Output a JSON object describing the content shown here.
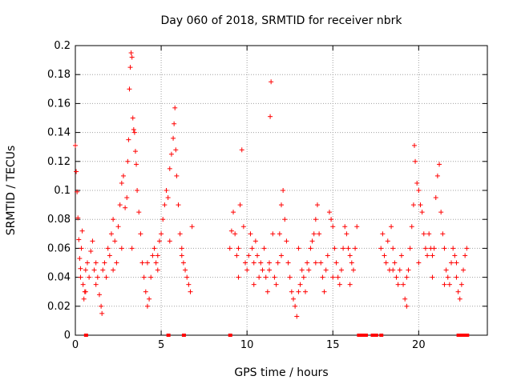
{
  "chart_data": {
    "type": "scatter",
    "title": "Day 060 of 2018, SRMTID for receiver nbrk",
    "xlabel": "GPS time / hours",
    "ylabel": "SRMTID / TECUs",
    "xlim": [
      0,
      24
    ],
    "ylim": [
      0,
      0.2
    ],
    "xticks": [
      0,
      5,
      10,
      15,
      20
    ],
    "yticks": [
      0,
      0.02,
      0.04,
      0.06,
      0.08,
      0.1,
      0.12,
      0.14,
      0.16,
      0.18,
      0.2
    ],
    "xtick_labels": [
      "0",
      "5",
      "10",
      "15",
      "20"
    ],
    "ytick_labels": [
      "0",
      "0.02",
      "0.04",
      "0.06",
      "0.08",
      "0.1",
      "0.12",
      "0.14",
      "0.16",
      "0.18",
      "0.2"
    ],
    "grid": true,
    "marker": "+",
    "color": "#ff0000",
    "series": [
      {
        "name": "SRMTID",
        "points": [
          [
            0.0,
            0.131
          ],
          [
            0.05,
            0.113
          ],
          [
            0.1,
            0.099
          ],
          [
            0.15,
            0.081
          ],
          [
            0.2,
            0.066
          ],
          [
            0.25,
            0.053
          ],
          [
            0.3,
            0.046
          ],
          [
            0.35,
            0.06
          ],
          [
            0.4,
            0.072
          ],
          [
            0.45,
            0.035
          ],
          [
            0.5,
            0.025
          ],
          [
            0.55,
            0.03
          ],
          [
            0.6,
            0.045
          ],
          [
            0.7,
            0.05
          ],
          [
            0.8,
            0.04
          ],
          [
            0.9,
            0.058
          ],
          [
            1.0,
            0.065
          ],
          [
            1.1,
            0.045
          ],
          [
            1.2,
            0.035
          ],
          [
            1.3,
            0.04
          ],
          [
            1.4,
            0.028
          ],
          [
            1.5,
            0.02
          ],
          [
            1.55,
            0.015
          ],
          [
            1.6,
            0.045
          ],
          [
            1.7,
            0.05
          ],
          [
            1.8,
            0.04
          ],
          [
            1.9,
            0.06
          ],
          [
            2.0,
            0.055
          ],
          [
            2.1,
            0.07
          ],
          [
            2.2,
            0.08
          ],
          [
            2.3,
            0.065
          ],
          [
            2.4,
            0.05
          ],
          [
            2.5,
            0.075
          ],
          [
            2.6,
            0.09
          ],
          [
            2.7,
            0.105
          ],
          [
            2.8,
            0.11
          ],
          [
            2.9,
            0.088
          ],
          [
            3.0,
            0.095
          ],
          [
            3.05,
            0.12
          ],
          [
            3.1,
            0.135
          ],
          [
            3.15,
            0.17
          ],
          [
            3.2,
            0.185
          ],
          [
            3.25,
            0.195
          ],
          [
            3.3,
            0.192
          ],
          [
            3.35,
            0.15
          ],
          [
            3.4,
            0.142
          ],
          [
            3.45,
            0.14
          ],
          [
            3.5,
            0.127
          ],
          [
            3.55,
            0.118
          ],
          [
            3.6,
            0.1
          ],
          [
            3.7,
            0.085
          ],
          [
            3.8,
            0.07
          ],
          [
            3.9,
            0.05
          ],
          [
            4.0,
            0.04
          ],
          [
            4.1,
            0.03
          ],
          [
            4.2,
            0.02
          ],
          [
            4.3,
            0.025
          ],
          [
            4.4,
            0.04
          ],
          [
            4.5,
            0.055
          ],
          [
            4.6,
            0.06
          ],
          [
            4.7,
            0.05
          ],
          [
            4.8,
            0.045
          ],
          [
            4.9,
            0.065
          ],
          [
            5.0,
            0.07
          ],
          [
            5.1,
            0.08
          ],
          [
            5.2,
            0.09
          ],
          [
            5.3,
            0.1
          ],
          [
            5.4,
            0.095
          ],
          [
            5.5,
            0.115
          ],
          [
            5.6,
            0.125
          ],
          [
            5.7,
            0.136
          ],
          [
            5.75,
            0.146
          ],
          [
            5.8,
            0.157
          ],
          [
            5.85,
            0.128
          ],
          [
            5.9,
            0.11
          ],
          [
            6.0,
            0.09
          ],
          [
            6.1,
            0.07
          ],
          [
            6.2,
            0.06
          ],
          [
            6.3,
            0.05
          ],
          [
            6.4,
            0.045
          ],
          [
            6.5,
            0.04
          ],
          [
            6.6,
            0.035
          ],
          [
            6.7,
            0.03
          ],
          [
            6.8,
            0.075
          ],
          [
            0.3,
            0.04
          ],
          [
            0.6,
            0.03
          ],
          [
            1.2,
            0.05
          ],
          [
            2.2,
            0.045
          ],
          [
            2.7,
            0.06
          ],
          [
            3.3,
            0.06
          ],
          [
            4.2,
            0.05
          ],
          [
            4.8,
            0.055
          ],
          [
            5.5,
            0.065
          ],
          [
            6.2,
            0.055
          ],
          [
            9.0,
            0.06
          ],
          [
            9.1,
            0.072
          ],
          [
            9.2,
            0.085
          ],
          [
            9.3,
            0.07
          ],
          [
            9.4,
            0.055
          ],
          [
            9.5,
            0.06
          ],
          [
            9.6,
            0.09
          ],
          [
            9.7,
            0.128
          ],
          [
            9.8,
            0.075
          ],
          [
            9.9,
            0.05
          ],
          [
            10.0,
            0.045
          ],
          [
            10.1,
            0.055
          ],
          [
            10.2,
            0.07
          ],
          [
            10.3,
            0.06
          ],
          [
            10.4,
            0.05
          ],
          [
            10.5,
            0.065
          ],
          [
            10.6,
            0.055
          ],
          [
            10.7,
            0.04
          ],
          [
            10.8,
            0.05
          ],
          [
            10.9,
            0.045
          ],
          [
            11.0,
            0.06
          ],
          [
            11.1,
            0.04
          ],
          [
            11.2,
            0.03
          ],
          [
            11.3,
            0.05
          ],
          [
            11.35,
            0.151
          ],
          [
            11.4,
            0.175
          ],
          [
            11.5,
            0.07
          ],
          [
            11.6,
            0.04
          ],
          [
            11.7,
            0.035
          ],
          [
            11.8,
            0.05
          ],
          [
            11.9,
            0.07
          ],
          [
            12.0,
            0.09
          ],
          [
            12.1,
            0.1
          ],
          [
            12.2,
            0.08
          ],
          [
            12.3,
            0.065
          ],
          [
            12.4,
            0.05
          ],
          [
            12.5,
            0.04
          ],
          [
            12.6,
            0.03
          ],
          [
            12.7,
            0.025
          ],
          [
            12.8,
            0.02
          ],
          [
            12.9,
            0.013
          ],
          [
            13.0,
            0.03
          ],
          [
            13.1,
            0.035
          ],
          [
            13.2,
            0.045
          ],
          [
            13.3,
            0.04
          ],
          [
            13.4,
            0.03
          ],
          [
            13.5,
            0.05
          ],
          [
            13.6,
            0.045
          ],
          [
            13.7,
            0.06
          ],
          [
            13.8,
            0.065
          ],
          [
            13.9,
            0.07
          ],
          [
            14.0,
            0.08
          ],
          [
            14.1,
            0.09
          ],
          [
            14.2,
            0.07
          ],
          [
            14.3,
            0.05
          ],
          [
            14.4,
            0.04
          ],
          [
            14.5,
            0.03
          ],
          [
            14.6,
            0.045
          ],
          [
            14.7,
            0.055
          ],
          [
            14.8,
            0.085
          ],
          [
            14.9,
            0.08
          ],
          [
            15.0,
            0.075
          ],
          [
            15.1,
            0.06
          ],
          [
            15.2,
            0.05
          ],
          [
            15.3,
            0.04
          ],
          [
            15.4,
            0.035
          ],
          [
            15.5,
            0.045
          ],
          [
            15.6,
            0.06
          ],
          [
            15.7,
            0.075
          ],
          [
            15.8,
            0.07
          ],
          [
            15.9,
            0.06
          ],
          [
            16.0,
            0.055
          ],
          [
            16.1,
            0.05
          ],
          [
            16.2,
            0.045
          ],
          [
            16.3,
            0.06
          ],
          [
            16.4,
            0.075
          ],
          [
            9.5,
            0.04
          ],
          [
            10.4,
            0.035
          ],
          [
            11.3,
            0.045
          ],
          [
            12.0,
            0.055
          ],
          [
            13.0,
            0.06
          ],
          [
            14.0,
            0.05
          ],
          [
            15.0,
            0.04
          ],
          [
            16.0,
            0.035
          ],
          [
            17.8,
            0.06
          ],
          [
            17.9,
            0.07
          ],
          [
            18.0,
            0.055
          ],
          [
            18.1,
            0.05
          ],
          [
            18.2,
            0.065
          ],
          [
            18.3,
            0.045
          ],
          [
            18.4,
            0.075
          ],
          [
            18.5,
            0.06
          ],
          [
            18.6,
            0.05
          ],
          [
            18.7,
            0.04
          ],
          [
            18.8,
            0.035
          ],
          [
            18.9,
            0.045
          ],
          [
            19.0,
            0.055
          ],
          [
            19.1,
            0.035
          ],
          [
            19.2,
            0.025
          ],
          [
            19.3,
            0.02
          ],
          [
            19.4,
            0.045
          ],
          [
            19.5,
            0.06
          ],
          [
            19.6,
            0.075
          ],
          [
            19.7,
            0.09
          ],
          [
            19.75,
            0.131
          ],
          [
            19.8,
            0.12
          ],
          [
            19.9,
            0.105
          ],
          [
            20.0,
            0.1
          ],
          [
            20.1,
            0.09
          ],
          [
            20.2,
            0.085
          ],
          [
            20.3,
            0.07
          ],
          [
            20.4,
            0.06
          ],
          [
            20.5,
            0.055
          ],
          [
            20.6,
            0.07
          ],
          [
            20.7,
            0.06
          ],
          [
            20.8,
            0.055
          ],
          [
            20.9,
            0.06
          ],
          [
            21.0,
            0.095
          ],
          [
            21.1,
            0.11
          ],
          [
            21.2,
            0.118
          ],
          [
            21.3,
            0.085
          ],
          [
            21.4,
            0.07
          ],
          [
            21.5,
            0.06
          ],
          [
            21.6,
            0.045
          ],
          [
            21.7,
            0.04
          ],
          [
            21.8,
            0.035
          ],
          [
            21.9,
            0.05
          ],
          [
            22.0,
            0.06
          ],
          [
            22.1,
            0.055
          ],
          [
            22.2,
            0.04
          ],
          [
            22.3,
            0.03
          ],
          [
            22.4,
            0.025
          ],
          [
            22.5,
            0.035
          ],
          [
            22.6,
            0.045
          ],
          [
            22.7,
            0.055
          ],
          [
            22.8,
            0.06
          ],
          [
            18.5,
            0.045
          ],
          [
            19.3,
            0.04
          ],
          [
            20.0,
            0.05
          ],
          [
            20.8,
            0.04
          ],
          [
            21.5,
            0.035
          ],
          [
            22.2,
            0.05
          ]
        ]
      }
    ],
    "zero_markers_x": [
      0.6,
      5.4,
      6.3,
      9.0,
      16.5,
      16.6,
      16.7,
      16.8,
      16.9,
      17.3,
      17.4,
      17.5,
      17.8,
      22.3,
      22.4,
      22.5,
      22.6,
      22.8
    ]
  }
}
